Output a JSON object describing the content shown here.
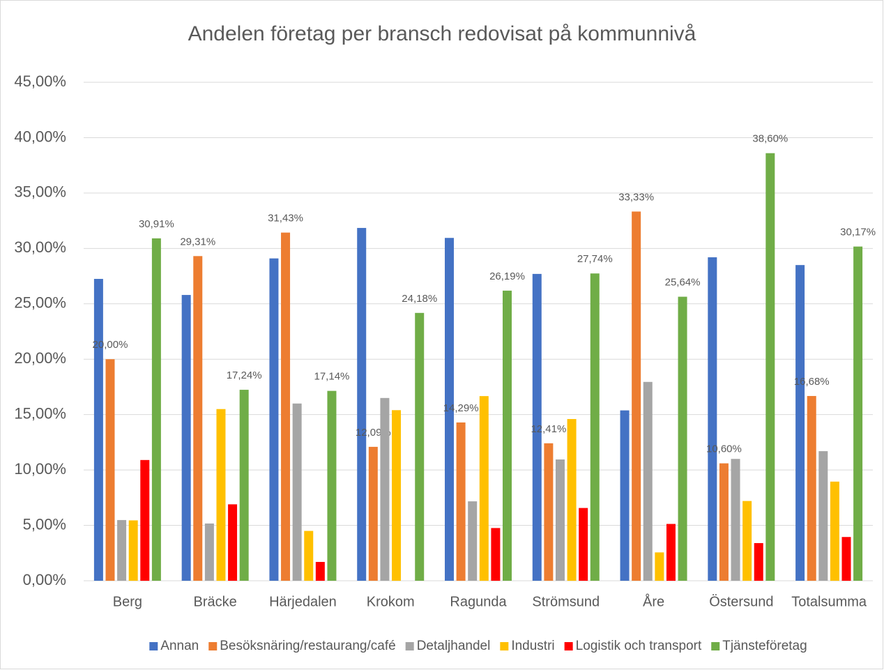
{
  "chart_data": {
    "type": "bar",
    "title": "Andelen företag per bransch redovisat på kommunnivå",
    "categories": [
      "Berg",
      "Bräcke",
      "Härjedalen",
      "Krokom",
      "Ragunda",
      "Strömsund",
      "Åre",
      "Östersund",
      "Totalsumma"
    ],
    "series": [
      {
        "name": "Annan",
        "color": "#4472c4",
        "values": [
          27.25,
          25.8,
          29.1,
          31.85,
          30.95,
          27.7,
          15.38,
          29.2,
          28.5
        ]
      },
      {
        "name": "Besöksnäring/restaurang/café",
        "color": "#ed7d31",
        "values": [
          20.0,
          29.31,
          31.43,
          12.09,
          14.29,
          12.41,
          33.33,
          10.6,
          16.68
        ],
        "value_labels": [
          "20,00%",
          "29,31%",
          "31,43%",
          "12,09%",
          "14,29%",
          "12,41%",
          "33,33%",
          "10,60%",
          "16,68%"
        ]
      },
      {
        "name": "Detaljhandel",
        "color": "#a5a5a5",
        "values": [
          5.48,
          5.17,
          16.0,
          16.5,
          7.17,
          10.95,
          17.95,
          11.0,
          11.7
        ]
      },
      {
        "name": "Industri",
        "color": "#ffc000",
        "values": [
          5.45,
          15.5,
          4.5,
          15.4,
          16.67,
          14.6,
          2.56,
          7.2,
          8.95
        ]
      },
      {
        "name": "Logistik och transport",
        "color": "#ff0000",
        "values": [
          10.9,
          6.9,
          1.7,
          0,
          4.76,
          6.57,
          5.13,
          3.4,
          3.95
        ]
      },
      {
        "name": "Tjänsteföretag",
        "color": "#70ad47",
        "values": [
          30.91,
          17.24,
          17.14,
          24.18,
          26.19,
          27.74,
          25.64,
          38.6,
          30.17
        ],
        "value_labels": [
          "30,91%",
          "17,24%",
          "17,14%",
          "24,18%",
          "26,19%",
          "27,74%",
          "25,64%",
          "38,60%",
          "30,17%"
        ]
      }
    ],
    "ylim": [
      0,
      45
    ],
    "yticks": [
      {
        "value": 0,
        "label": "0,00%"
      },
      {
        "value": 5,
        "label": "5,00%"
      },
      {
        "value": 10,
        "label": "10,00%"
      },
      {
        "value": 15,
        "label": "15,00%"
      },
      {
        "value": 20,
        "label": "20,00%"
      },
      {
        "value": 25,
        "label": "25,00%"
      },
      {
        "value": 30,
        "label": "30,00%"
      },
      {
        "value": 35,
        "label": "35,00%"
      },
      {
        "value": 40,
        "label": "40,00%"
      },
      {
        "value": 45,
        "label": "45,00%"
      }
    ],
    "grid": true,
    "legend": "bottom"
  }
}
